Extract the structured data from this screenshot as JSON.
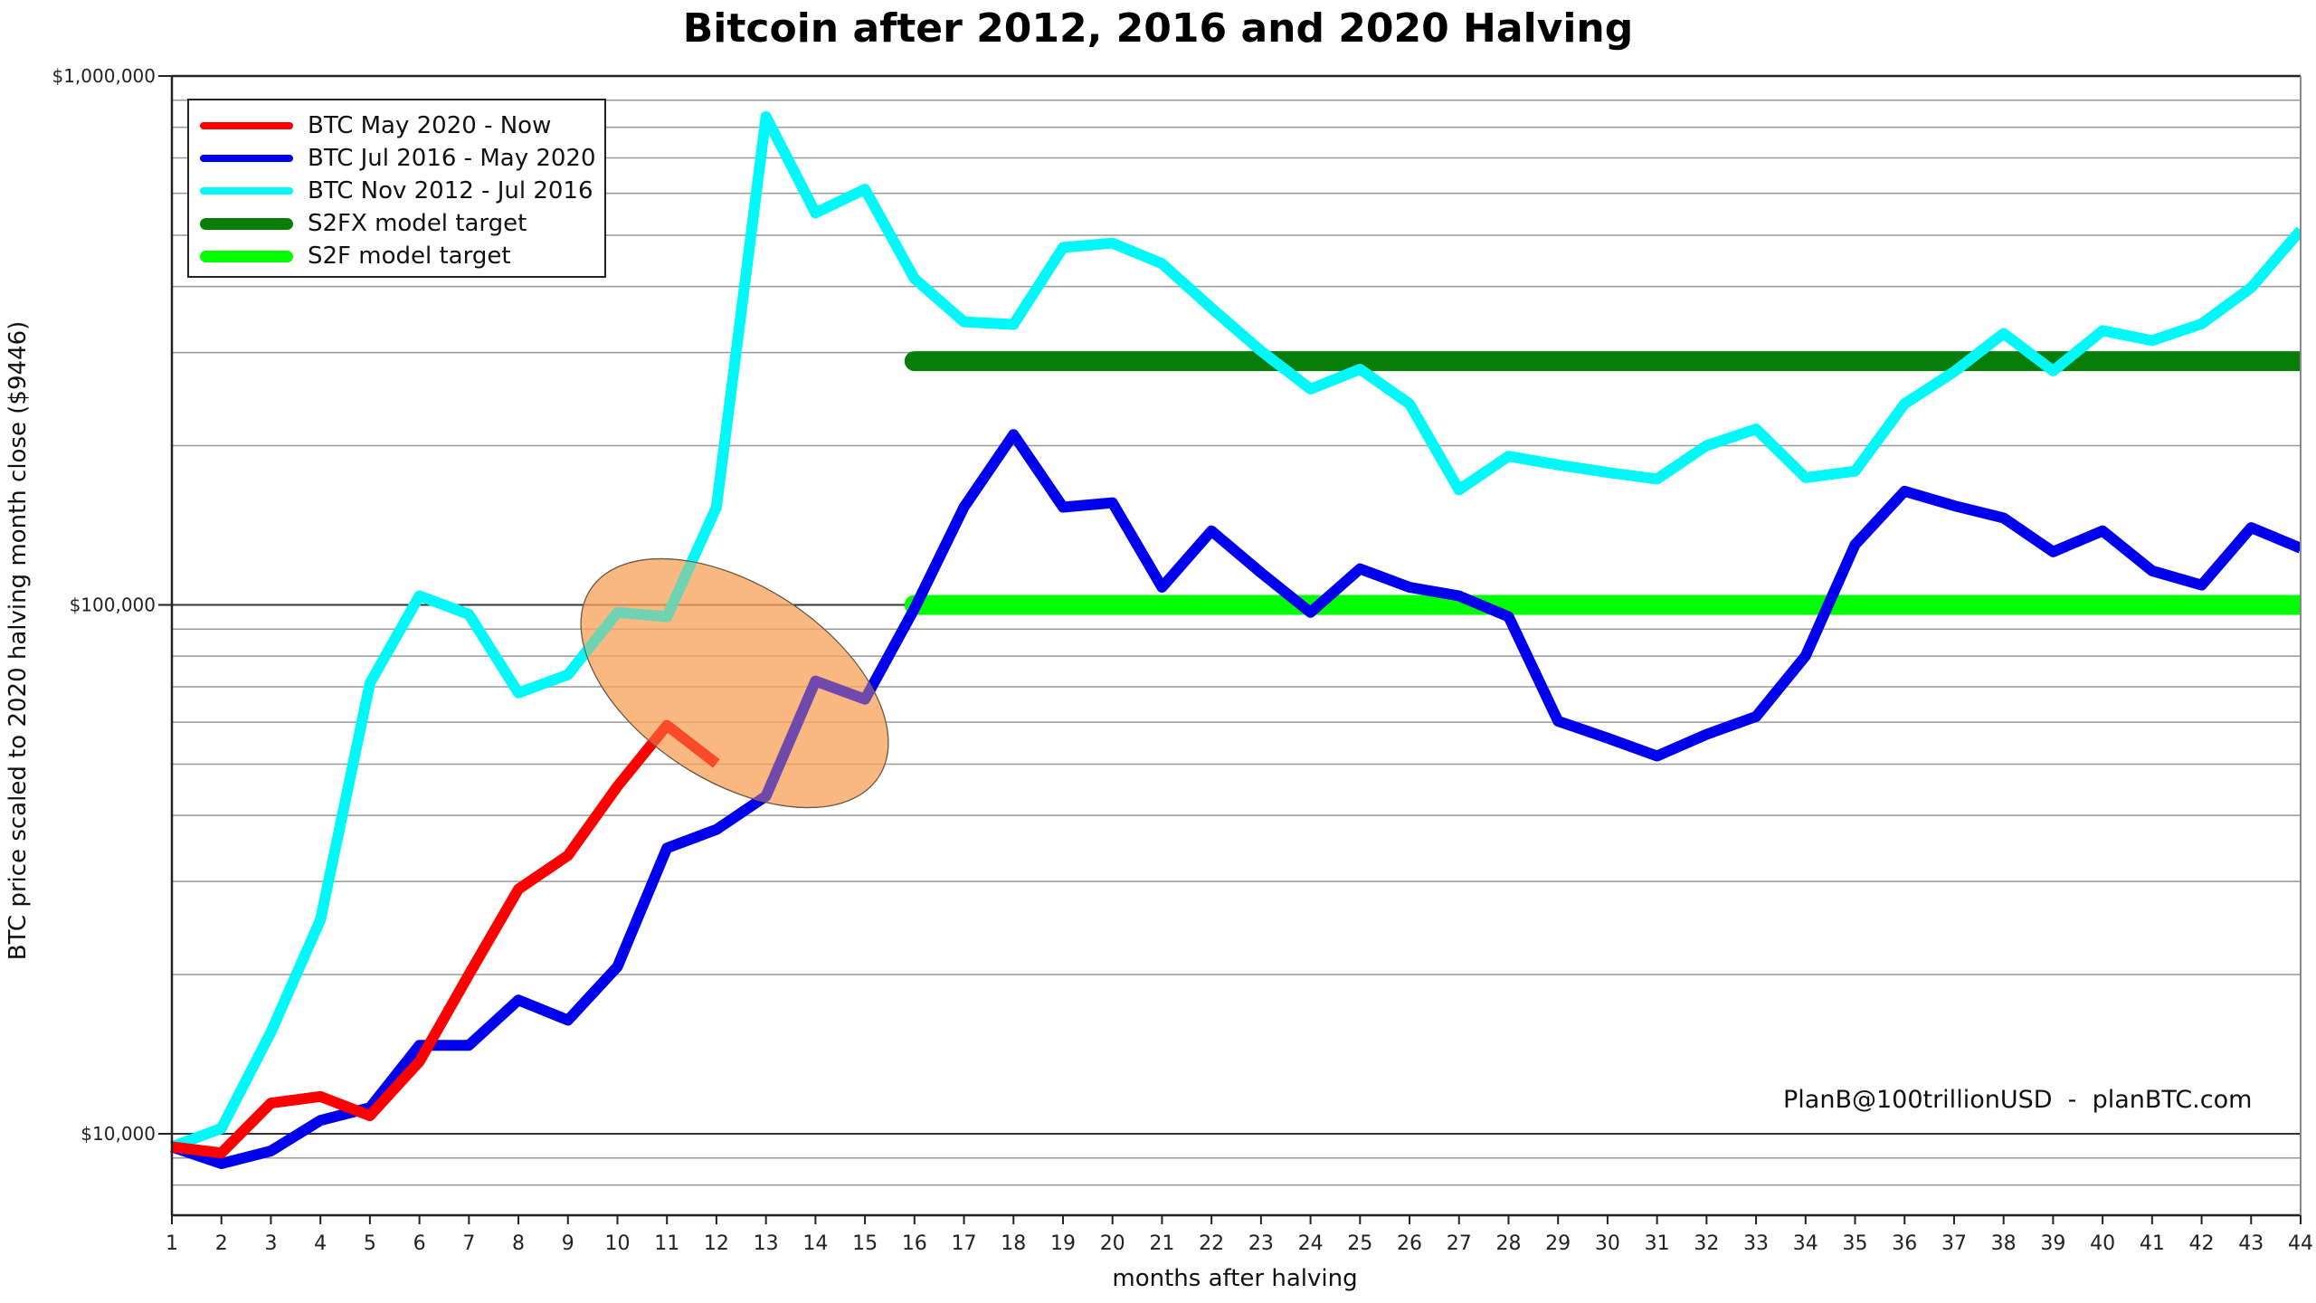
{
  "chart_data": {
    "type": "line",
    "title": "Bitcoin after 2012, 2016 and 2020 Halving",
    "xlabel": "months after halving",
    "ylabel": "BTC price scaled to 2020 halving month close ($9446)",
    "yscale": "log",
    "ylim": [
      7000,
      1000000
    ],
    "xlim": [
      1,
      44
    ],
    "y_tick_labels": [
      "$1,000,000",
      "$100,000",
      "$10,000"
    ],
    "y_tick_values": [
      1000000,
      100000,
      10000
    ],
    "x": [
      1,
      2,
      3,
      4,
      5,
      6,
      7,
      8,
      9,
      10,
      11,
      12,
      13,
      14,
      15,
      16,
      17,
      18,
      19,
      20,
      21,
      22,
      23,
      24,
      25,
      26,
      27,
      28,
      29,
      30,
      31,
      32,
      33,
      34,
      35,
      36,
      37,
      38,
      39,
      40,
      41,
      42,
      43,
      44
    ],
    "grid": true,
    "legend_position": "upper left",
    "series": [
      {
        "name": "BTC May 2020 - Now",
        "color": "#ff0000",
        "width": 12,
        "x_start": 1,
        "values": [
          9446,
          9200,
          11430,
          11760,
          10820,
          13700,
          20000,
          29000,
          33600,
          45400,
          59200,
          50100
        ]
      },
      {
        "name": "BTC Jul 2016 - May 2020",
        "color": "#0000ee",
        "width": 12,
        "x_start": 1,
        "values": [
          9446,
          8780,
          9280,
          10600,
          11200,
          14700,
          14700,
          17900,
          16400,
          20700,
          34700,
          37600,
          43500,
          71800,
          66300,
          98400,
          153000,
          210000,
          153000,
          156000,
          108000,
          138000,
          115000,
          96800,
          117000,
          108000,
          104000,
          95000,
          60300,
          56000,
          51800,
          56900,
          61500,
          80100,
          130000,
          164000,
          154000,
          146000,
          126000,
          138000,
          116000,
          109000,
          140000,
          128000
        ]
      },
      {
        "name": "BTC Nov 2012 - Jul 2016",
        "color": "#00f8f8",
        "width": 12,
        "x_start": 1,
        "values": [
          9446,
          10240,
          15560,
          25400,
          71100,
          104000,
          96000,
          68200,
          73800,
          96800,
          95000,
          153000,
          838000,
          551000,
          611000,
          414000,
          343000,
          339000,
          474000,
          483000,
          442000,
          364000,
          302000,
          256000,
          279000,
          240000,
          165000,
          191000,
          184000,
          178000,
          173000,
          200000,
          215000,
          174000,
          179000,
          240000,
          276000,
          326000,
          277000,
          330000,
          316000,
          340000,
          398000,
          511000
        ]
      },
      {
        "name": "S2FX model target",
        "color": "#087d08",
        "width": 22,
        "x_start": 16,
        "x_end": 44,
        "constant": 289000
      },
      {
        "name": "S2F model target",
        "color": "#00ff00",
        "width": 22,
        "x_start": 16,
        "x_end": 44,
        "constant": 100000
      }
    ],
    "annotations": [
      {
        "type": "ellipse",
        "fill": "#f7a35c",
        "opacity": 0.6,
        "cx_month": 12.5,
        "cy_value": 71000,
        "note": "highlight around months 10-15"
      },
      {
        "type": "text",
        "text": "PlanB@100trillionUSD  -  planBTC.com"
      }
    ]
  },
  "header": {
    "title": "Bitcoin after 2012, 2016 and 2020 Halving"
  },
  "axes": {
    "xlabel": "months after halving",
    "ylabel": "BTC price scaled to 2020 halving month close ($9446)"
  },
  "legend": {
    "items": [
      {
        "label": "BTC May 2020 - Now",
        "color": "#ff0000",
        "thick": false
      },
      {
        "label": "BTC Jul 2016 - May 2020",
        "color": "#0000ee",
        "thick": false
      },
      {
        "label": "BTC Nov 2012 - Jul 2016",
        "color": "#00f8f8",
        "thick": false
      },
      {
        "label": "S2FX model target",
        "color": "#087d08",
        "thick": true
      },
      {
        "label": "S2F model target",
        "color": "#00ff00",
        "thick": true
      }
    ]
  },
  "watermark": {
    "text": "PlanB@100trillionUSD  -  planBTC.com"
  }
}
